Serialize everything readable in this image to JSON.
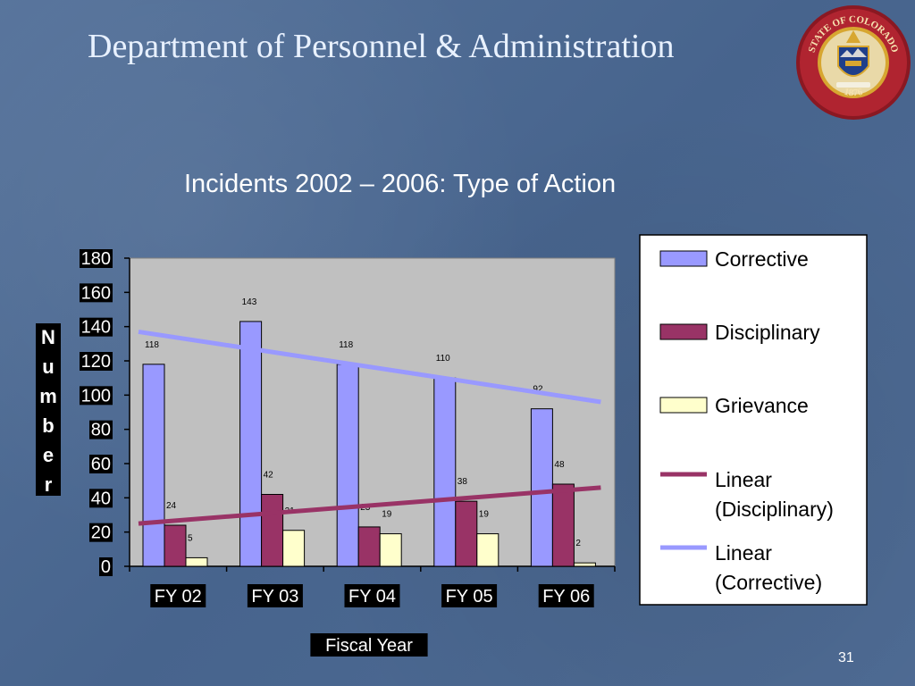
{
  "slide": {
    "title": "Department of Personnel & Administration",
    "page_number": "31"
  },
  "seal": {
    "top_text": "STATE OF COLORADO",
    "bottom_text": "1876",
    "colors": {
      "ring": "#b02430",
      "gold": "#d7a630",
      "center": "#1f3f8a"
    }
  },
  "colors": {
    "corrective": "#9999ff",
    "disciplinary": "#993366",
    "grievance": "#ffffcc",
    "trend_corrective": "#9999ff",
    "trend_disciplinary": "#993366",
    "plot_area": "#c0c0c0",
    "label_bg": "#000000"
  },
  "chart_data": {
    "type": "bar",
    "title": "Incidents 2002 – 2006: Type of Action",
    "xlabel": "Fiscal Year",
    "ylabel": "Number",
    "categories": [
      "FY 02",
      "FY 03",
      "FY 04",
      "FY 05",
      "FY 06"
    ],
    "ylim": [
      0,
      180
    ],
    "yticks": [
      0,
      20,
      40,
      60,
      80,
      100,
      120,
      140,
      160,
      180
    ],
    "series": [
      {
        "name": "Corrective",
        "values": [
          118,
          143,
          118,
          110,
          92
        ],
        "labels": [
          "118",
          "143",
          "118",
          "110",
          "92"
        ]
      },
      {
        "name": "Disciplinary",
        "values": [
          24,
          42,
          23,
          38,
          48
        ],
        "labels": [
          "24",
          "42",
          "23",
          "38",
          "48"
        ]
      },
      {
        "name": "Grievance",
        "values": [
          5,
          21,
          19,
          19,
          2
        ],
        "labels": [
          "5",
          "21",
          "19",
          "19",
          "2"
        ]
      }
    ],
    "trendlines": [
      {
        "name": "Linear (Disciplinary)",
        "start": 25,
        "end": 46
      },
      {
        "name": "Linear (Corrective)",
        "start": 137,
        "end": 96
      }
    ],
    "legend": {
      "placement": "right",
      "items": [
        {
          "kind": "box",
          "label": "Corrective"
        },
        {
          "kind": "box",
          "label": "Disciplinary"
        },
        {
          "kind": "box",
          "label": "Grievance"
        },
        {
          "kind": "line",
          "label": [
            "Linear",
            "(Disciplinary)"
          ]
        },
        {
          "kind": "line",
          "label": [
            "Linear",
            "(Corrective)"
          ]
        }
      ]
    },
    "grid": false
  }
}
